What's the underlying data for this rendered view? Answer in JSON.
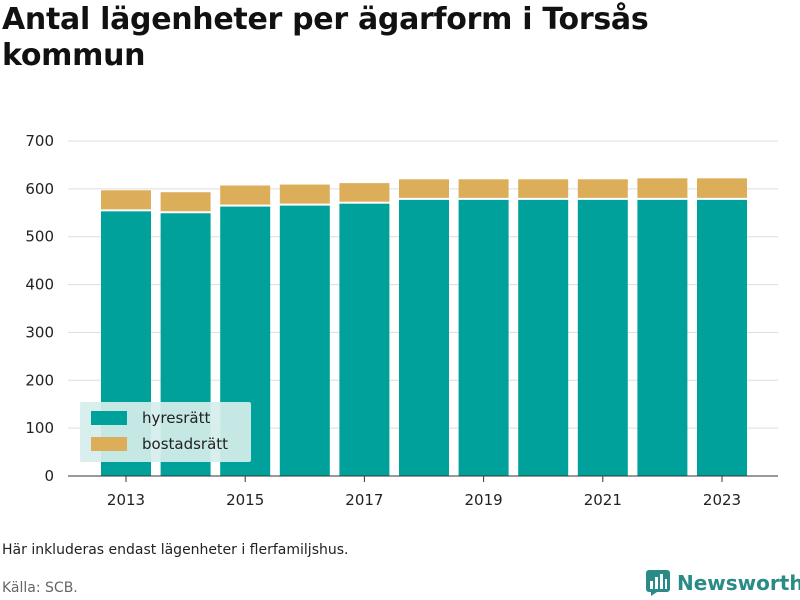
{
  "title": "Antal lägenheter per ägarform i Torsås kommun",
  "note": "Här inkluderas endast lägenheter i flerfamiljshus.",
  "source": "Källa: SCB.",
  "brand": "Newsworthy",
  "colors": {
    "hyresratt": "#00a19a",
    "bostadsratt": "#dcae5a",
    "grid": "#dddddd",
    "axis": "#333333",
    "legend_bg": "#d6eeec",
    "brand": "#2a8a86"
  },
  "chart_data": {
    "type": "bar",
    "stacked": true,
    "x": [
      2013,
      2014,
      2015,
      2016,
      2017,
      2018,
      2019,
      2020,
      2021,
      2022,
      2023
    ],
    "x_tick_labels": [
      "2013",
      "2015",
      "2017",
      "2019",
      "2021",
      "2023"
    ],
    "y_tick_labels": [
      "0",
      "100",
      "200",
      "300",
      "400",
      "500",
      "600",
      "700"
    ],
    "series": [
      {
        "name": "hyresrätt",
        "values": [
          553,
          549,
          563,
          565,
          569,
          577,
          577,
          577,
          577,
          577,
          577
        ]
      },
      {
        "name": "bostadsratt",
        "label": "bostadsrätt",
        "values": [
          44,
          44,
          44,
          44,
          43,
          43,
          43,
          43,
          43,
          45,
          45
        ]
      }
    ],
    "ylim": [
      0,
      700
    ],
    "grid": true,
    "legend_position": "bottom-left"
  }
}
